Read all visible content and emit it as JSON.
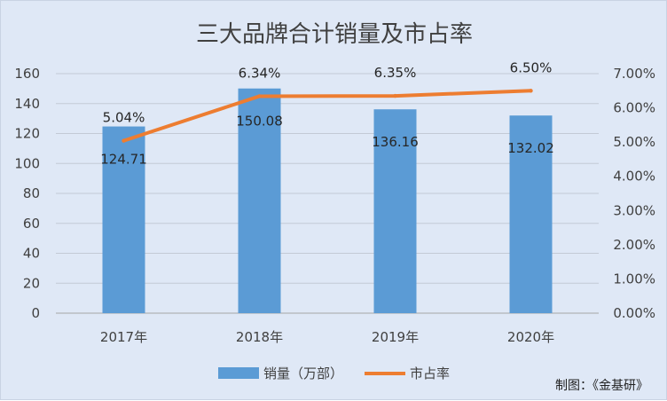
{
  "chart_data": {
    "type": "bar+line",
    "title": "三大品牌合计销量及市占率",
    "categories": [
      "2017年",
      "2018年",
      "2019年",
      "2020年"
    ],
    "series": [
      {
        "name": "销量（万部）",
        "type": "bar",
        "axis": "left",
        "values": [
          124.71,
          150.08,
          136.16,
          132.02
        ],
        "labels": [
          "124.71",
          "150.08",
          "136.16",
          "132.02"
        ],
        "color": "#5b9bd5"
      },
      {
        "name": "市占率",
        "type": "line",
        "axis": "right",
        "values": [
          5.04,
          6.34,
          6.35,
          6.5
        ],
        "labels": [
          "5.04%",
          "6.34%",
          "6.35%",
          "6.50%"
        ],
        "color": "#ed7d31"
      }
    ],
    "y_left": {
      "min": 0,
      "max": 160,
      "step": 20,
      "ticks": [
        "0",
        "20",
        "40",
        "60",
        "80",
        "100",
        "120",
        "140",
        "160"
      ]
    },
    "y_right": {
      "min": 0,
      "max": 7,
      "step": 1,
      "ticks": [
        "0.00%",
        "1.00%",
        "2.00%",
        "3.00%",
        "4.00%",
        "5.00%",
        "6.00%",
        "7.00%"
      ]
    },
    "grid": true,
    "legend_position": "bottom",
    "background_color": "#dfe8f6"
  },
  "credit": "制图：《金基研》"
}
